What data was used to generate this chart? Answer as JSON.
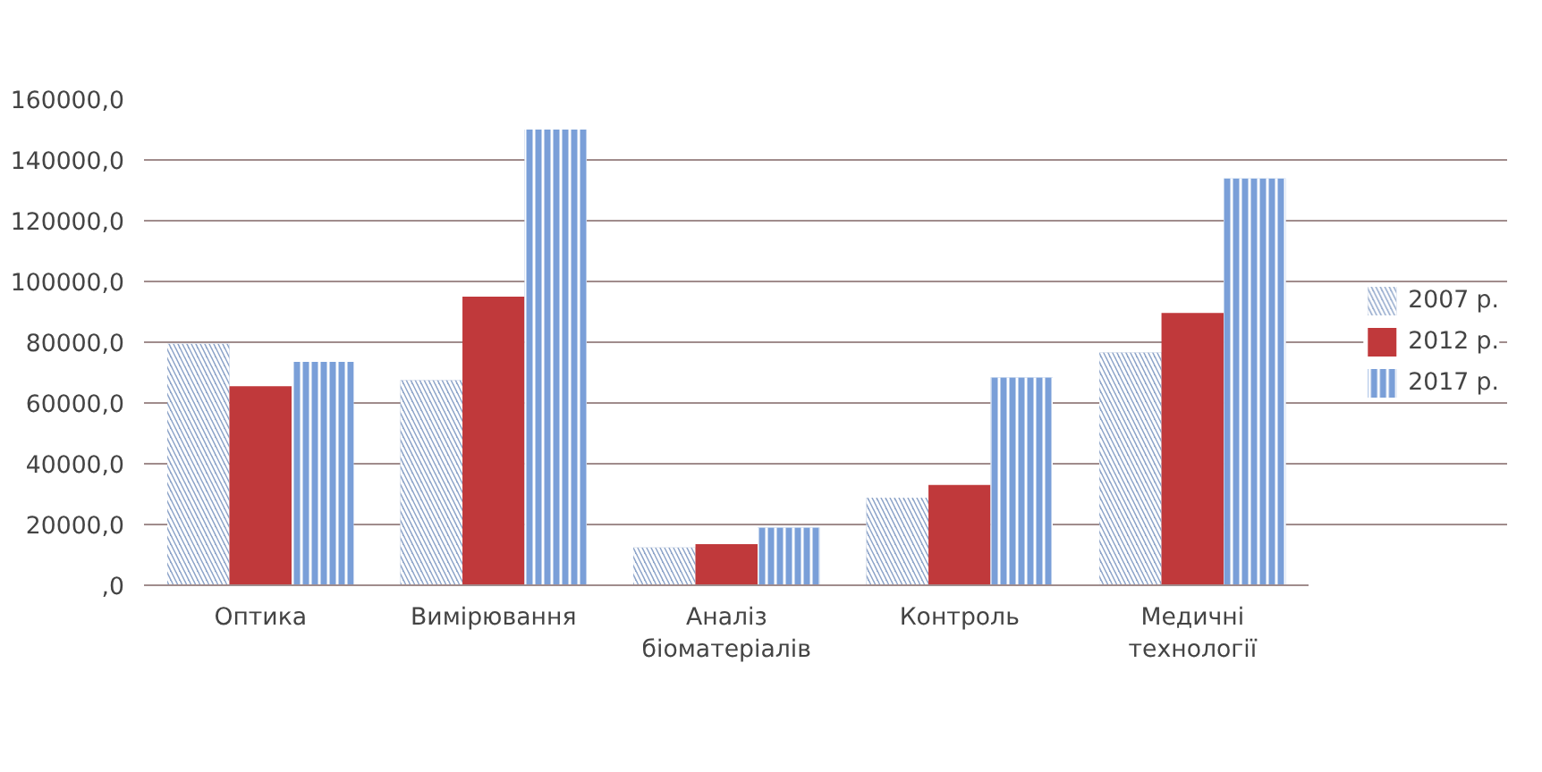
{
  "chart_data": {
    "type": "bar",
    "categories": [
      "Оптика",
      "Вимірювання",
      "Аналіз\nбіоматеріалів",
      "Контроль",
      "Медичні\nтехнології"
    ],
    "series": [
      {
        "name": "2007 р.",
        "color": "#8da4c9",
        "values": [
          79500,
          67500,
          12400,
          28800,
          76600
        ]
      },
      {
        "name": "2012 р.",
        "color": "#c0393b",
        "values": [
          65500,
          95000,
          13500,
          33000,
          89600
        ]
      },
      {
        "name": "2017 р.",
        "color": "#7a9fd8",
        "values": [
          73500,
          150000,
          19000,
          68400,
          133900
        ]
      }
    ],
    "ylim": [
      0,
      160000
    ],
    "yticks": [
      {
        "value": 0,
        "label": ",0"
      },
      {
        "value": 20000,
        "label": "20000,0"
      },
      {
        "value": 40000,
        "label": "40000,0"
      },
      {
        "value": 60000,
        "label": "60000,0"
      },
      {
        "value": 80000,
        "label": "80000,0"
      },
      {
        "value": 100000,
        "label": "100000,0"
      },
      {
        "value": 120000,
        "label": "120000,0"
      },
      {
        "value": 140000,
        "label": "140000,0"
      },
      {
        "value": 160000,
        "label": "160000,0"
      }
    ],
    "grid": "y",
    "legend": "right"
  }
}
